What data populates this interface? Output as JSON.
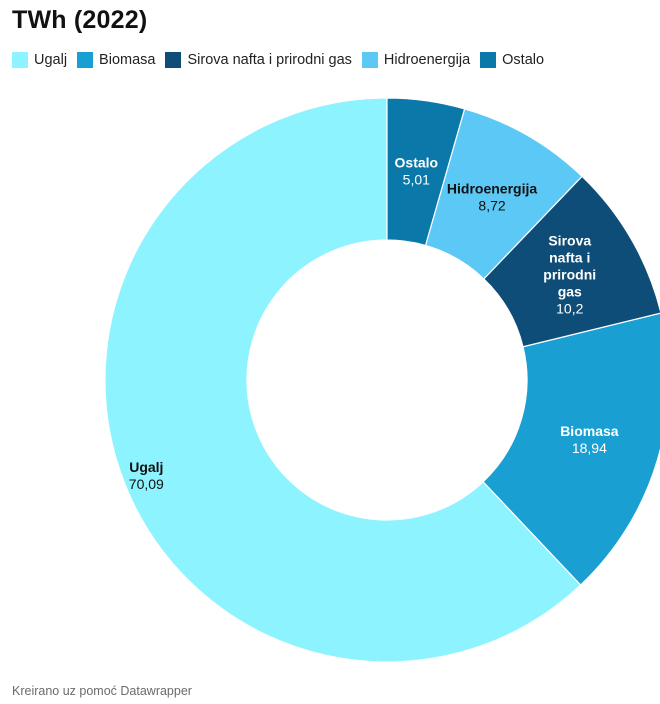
{
  "chart_data": {
    "type": "pie",
    "variant": "donut",
    "title": "TWh (2022)",
    "categories": [
      "Ugalj",
      "Biomasa",
      "Sirova nafta i prirodni gas",
      "Hidroenergija",
      "Ostalo"
    ],
    "values": [
      70.09,
      18.94,
      10.2,
      8.72,
      5.01
    ],
    "value_labels": [
      "70,09",
      "18,94",
      "10,2",
      "8,72",
      "5,01"
    ],
    "slice_labels": [
      [
        "Ugalj"
      ],
      [
        "Biomasa"
      ],
      [
        "Sirova",
        "nafta i",
        "prirodni",
        "gas"
      ],
      [
        "Hidroenergija"
      ],
      [
        "Ostalo"
      ]
    ],
    "colors": [
      "#8df3ff",
      "#1a9fd3",
      "#0e4d78",
      "#5bc8f5",
      "#0a78a8"
    ],
    "label_colors": [
      "#111111",
      "#ffffff",
      "#ffffff",
      "#111111",
      "#ffffff"
    ],
    "legend": "top-left",
    "ordering": "counter-clockwise from top"
  },
  "footer": "Kreirano uz pomoć Datawrapper"
}
